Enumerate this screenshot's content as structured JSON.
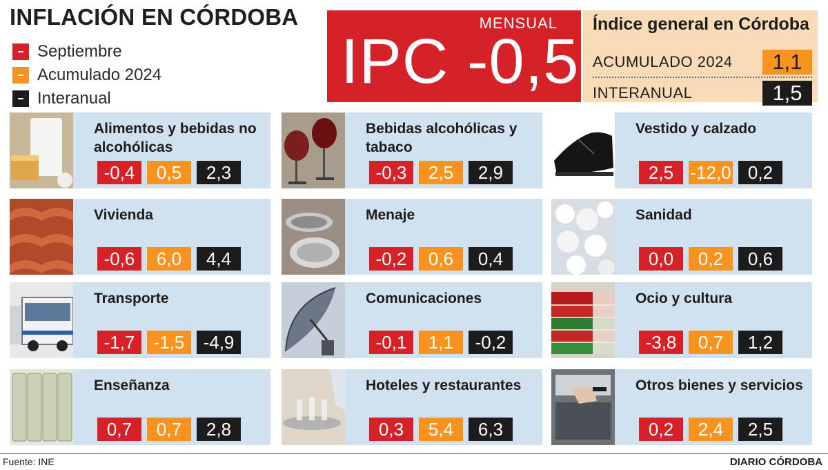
{
  "title": "INFLACIÓN EN CÓRDOBA",
  "legend": [
    {
      "label": "Septiembre",
      "color": "#d52127"
    },
    {
      "label": "Acumulado 2024",
      "color": "#f7931e"
    },
    {
      "label": "Interanual",
      "color": "#1c1c1c"
    }
  ],
  "ipc": {
    "tag": "MENSUAL",
    "headline": "IPC -0,5"
  },
  "index": {
    "title": "Índice general en Córdoba",
    "rows": [
      {
        "label": "ACUMULADO 2024",
        "value": "1,1"
      },
      {
        "label": "INTERANUAL",
        "value": "1,5"
      }
    ]
  },
  "categories": [
    {
      "name": "Alimentos y bebidas no alcohólicas",
      "icon": "milk-cheese-photo",
      "values": [
        "-0,4",
        "0,5",
        "2,3"
      ]
    },
    {
      "name": "Bebidas alcohólicas y tabaco",
      "icon": "wine-glasses-photo",
      "values": [
        "-0,3",
        "2,5",
        "2,9"
      ]
    },
    {
      "name": "Vestido y calzado",
      "icon": "shoe-photo",
      "values": [
        "2,5",
        "-12,0",
        "0,2"
      ]
    },
    {
      "name": "Vivienda",
      "icon": "roof-tiles-photo",
      "values": [
        "-0,6",
        "6,0",
        "4,4"
      ]
    },
    {
      "name": "Menaje",
      "icon": "cookware-photo",
      "values": [
        "-0,2",
        "0,6",
        "0,4"
      ]
    },
    {
      "name": "Sanidad",
      "icon": "pills-photo",
      "values": [
        "0,0",
        "0,2",
        "0,6"
      ]
    },
    {
      "name": "Transporte",
      "icon": "bus-photo",
      "values": [
        "-1,7",
        "-1,5",
        "-4,9"
      ]
    },
    {
      "name": "Comunicaciones",
      "icon": "satellite-dish-photo",
      "values": [
        "-0,1",
        "1,1",
        "-0,2"
      ]
    },
    {
      "name": "Ocio y cultura",
      "icon": "books-photo",
      "values": [
        "-3,8",
        "0,7",
        "1,2"
      ]
    },
    {
      "name": "Enseñanza",
      "icon": "school-chairs-photo",
      "values": [
        "0,7",
        "0,7",
        "2,8"
      ]
    },
    {
      "name": "Hoteles y restaurantes",
      "icon": "waiter-tray-photo",
      "values": [
        "0,3",
        "5,4",
        "6,3"
      ]
    },
    {
      "name": "Otros bienes y servicios",
      "icon": "atm-photo",
      "values": [
        "0,2",
        "2,4",
        "2,5"
      ]
    }
  ],
  "footer": {
    "source": "Fuente: INE",
    "brand": "DIARIO CÓRDOBA"
  }
}
